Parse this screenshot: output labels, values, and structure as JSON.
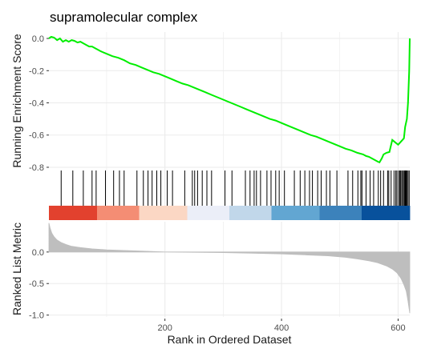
{
  "chart_data": {
    "type": "line",
    "title": "supramolecular complex",
    "colors": {
      "es_line": "#00ee00",
      "hit_line": "#000000",
      "metric_fill": "#bebebe",
      "grid": "#ebebeb",
      "heat_stops": [
        "#e2412e",
        "#f48d74",
        "#fbd7c4",
        "#ebeef8",
        "#c1d7ea",
        "#62a6d2",
        "#3c82bb",
        "#08519c"
      ]
    },
    "xlim": [
      1,
      620
    ],
    "x_ticks": [
      200,
      400,
      600
    ],
    "xlabel": "Rank in Ordered Dataset",
    "panels": [
      {
        "name": "running-enrichment",
        "ylabel": "Running Enrichment Score",
        "ylim": [
          -0.82,
          0.04
        ],
        "y_ticks": [
          0.0,
          -0.2,
          -0.4,
          -0.6,
          -0.8
        ],
        "series": [
          {
            "values_x": [
              1,
              5,
              10,
              15,
              20,
              25,
              30,
              35,
              40,
              45,
              50,
              55,
              60,
              65,
              70,
              75,
              80,
              85,
              90,
              100,
              110,
              120,
              130,
              140,
              150,
              160,
              170,
              180,
              190,
              200,
              210,
              220,
              230,
              240,
              250,
              260,
              270,
              280,
              290,
              300,
              310,
              320,
              330,
              340,
              350,
              360,
              370,
              380,
              390,
              400,
              410,
              420,
              430,
              440,
              450,
              460,
              470,
              480,
              490,
              500,
              510,
              520,
              530,
              540,
              545,
              550,
              555,
              560,
              565,
              568,
              572,
              575,
              580,
              585,
              590,
              595,
              600,
              605,
              610,
              612,
              615,
              617,
              619,
              620
            ],
            "values": [
              0.0,
              0.01,
              0.005,
              -0.01,
              0.0,
              -0.02,
              -0.01,
              -0.02,
              -0.01,
              -0.015,
              -0.025,
              -0.02,
              -0.03,
              -0.04,
              -0.05,
              -0.05,
              -0.06,
              -0.07,
              -0.08,
              -0.095,
              -0.11,
              -0.12,
              -0.135,
              -0.155,
              -0.165,
              -0.18,
              -0.195,
              -0.21,
              -0.22,
              -0.235,
              -0.25,
              -0.265,
              -0.28,
              -0.29,
              -0.305,
              -0.32,
              -0.335,
              -0.35,
              -0.365,
              -0.38,
              -0.395,
              -0.41,
              -0.425,
              -0.44,
              -0.455,
              -0.47,
              -0.485,
              -0.5,
              -0.51,
              -0.525,
              -0.54,
              -0.555,
              -0.57,
              -0.585,
              -0.6,
              -0.61,
              -0.625,
              -0.64,
              -0.655,
              -0.67,
              -0.685,
              -0.695,
              -0.71,
              -0.72,
              -0.73,
              -0.735,
              -0.745,
              -0.755,
              -0.765,
              -0.77,
              -0.745,
              -0.72,
              -0.71,
              -0.705,
              -0.63,
              -0.645,
              -0.66,
              -0.64,
              -0.62,
              -0.55,
              -0.5,
              -0.4,
              -0.2,
              0.0
            ]
          }
        ]
      },
      {
        "name": "hit-positions",
        "ranks": [
          22,
          42,
          60,
          75,
          82,
          98,
          112,
          122,
          130,
          152,
          163,
          171,
          178,
          186,
          193,
          204,
          213,
          234,
          247,
          251,
          256,
          264,
          272,
          280,
          303,
          315,
          338,
          346,
          353,
          357,
          364,
          375,
          382,
          390,
          396,
          405,
          422,
          432,
          440,
          448,
          453,
          462,
          468,
          477,
          483,
          495,
          514,
          522,
          531,
          536,
          538,
          545,
          552,
          558,
          566,
          570,
          575,
          582,
          584,
          588,
          593,
          596,
          598,
          601,
          603,
          604,
          606,
          608,
          609,
          611,
          612,
          613,
          614,
          615,
          617,
          619
        ]
      },
      {
        "name": "ranked-list-metric",
        "ylabel": "Ranked List Metric",
        "ylim": [
          -1.03,
          0.48
        ],
        "y_ticks": [
          0.0,
          -0.5,
          -1.0
        ],
        "series": [
          {
            "values_x": [
              1,
              3,
              6,
              10,
              15,
              22,
              30,
              40,
              55,
              75,
              100,
              130,
              160,
              200,
              250,
              300,
              350,
              400,
              440,
              480,
              510,
              530,
              550,
              565,
              580,
              590,
              598,
              605,
              610,
              614,
              617,
              620
            ],
            "values": [
              0.46,
              0.38,
              0.3,
              0.24,
              0.19,
              0.15,
              0.12,
              0.09,
              0.07,
              0.05,
              0.035,
              0.025,
              0.015,
              0.0,
              -0.005,
              -0.01,
              -0.02,
              -0.03,
              -0.045,
              -0.06,
              -0.085,
              -0.11,
              -0.14,
              -0.17,
              -0.22,
              -0.27,
              -0.33,
              -0.42,
              -0.52,
              -0.62,
              -0.78,
              -0.97
            ]
          }
        ]
      }
    ]
  }
}
